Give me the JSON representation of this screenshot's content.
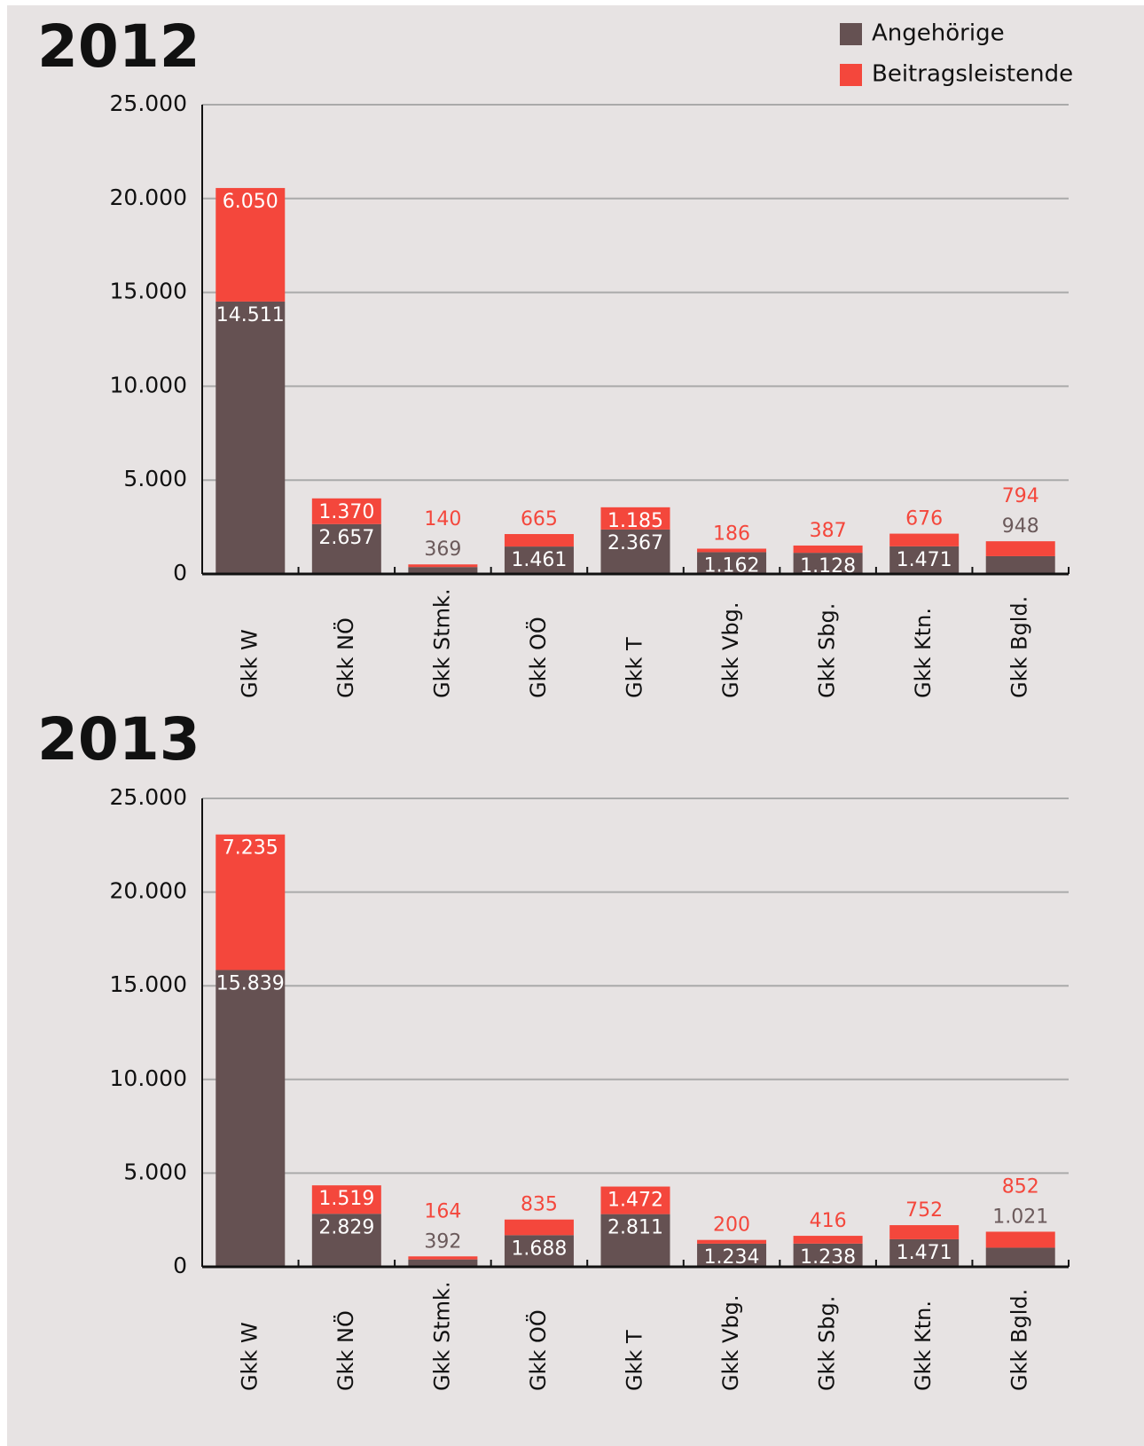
{
  "chart_data": [
    {
      "type": "stacked_bar",
      "title": "2012",
      "categories": [
        "Gkk W",
        "Gkk NÖ",
        "Gkk Stmk.",
        "Gkk OÖ",
        "Gkk T",
        "Gkk Vbg.",
        "Gkk Sbg.",
        "Gkk Ktn.",
        "Gkk Bgld."
      ],
      "series": [
        {
          "name": "Angehörige",
          "color": "#655152",
          "values": [
            14511,
            2657,
            369,
            1461,
            2367,
            1162,
            1128,
            1471,
            948
          ],
          "value_labels": [
            "14.511",
            "2.657",
            "369",
            "1.461",
            "2.367",
            "1.162",
            "1.128",
            "1.471",
            "948"
          ]
        },
        {
          "name": "Beitragsleistende",
          "color": "#f4473c",
          "values": [
            6050,
            1370,
            140,
            665,
            1185,
            186,
            387,
            676,
            794
          ],
          "value_labels": [
            "6.050",
            "1.370",
            "140",
            "665",
            "1.185",
            "186",
            "387",
            "676",
            "794"
          ]
        }
      ],
      "ylim": [
        0,
        25000
      ],
      "yticks": [
        0,
        {
          "value": 5000,
          "label": "5.000"
        },
        {
          "value": 10000,
          "label": "10.000"
        },
        {
          "value": 15000,
          "label": "15.000"
        },
        {
          "value": 20000,
          "label": "20.000"
        },
        {
          "value": 25000,
          "label": "25.000"
        }
      ],
      "grid": true,
      "legend": "upper right"
    },
    {
      "type": "stacked_bar",
      "title": "2013",
      "categories": [
        "Gkk W",
        "Gkk NÖ",
        "Gkk Stmk.",
        "Gkk OÖ",
        "Gkk T",
        "Gkk Vbg.",
        "Gkk Sbg.",
        "Gkk Ktn.",
        "Gkk Bgld."
      ],
      "series": [
        {
          "color": "#655152",
          "values": [
            15839,
            2829,
            392,
            1688,
            2811,
            1234,
            1238,
            1471,
            1021
          ],
          "value_labels": [
            "15.839",
            "2.829",
            "392",
            "1.688",
            "2.811",
            "1.234",
            "1.238",
            "1.471",
            "1.021"
          ]
        },
        {
          "color": "#f4473c",
          "values": [
            7235,
            1519,
            164,
            835,
            1472,
            200,
            416,
            752,
            852
          ],
          "value_labels": [
            "7.235",
            "1.519",
            "164",
            "835",
            "1.472",
            "200",
            "416",
            "752",
            "852"
          ]
        }
      ],
      "ylim": [
        0,
        25000
      ],
      "yticks": [
        0,
        {
          "value": 5000,
          "label": "5.000"
        },
        {
          "value": 10000,
          "label": "10.000"
        },
        {
          "value": 15000,
          "label": "15.000"
        },
        {
          "value": 20000,
          "label": "20.000"
        },
        {
          "value": 25000,
          "label": "25.000"
        }
      ],
      "grid": true
    }
  ]
}
